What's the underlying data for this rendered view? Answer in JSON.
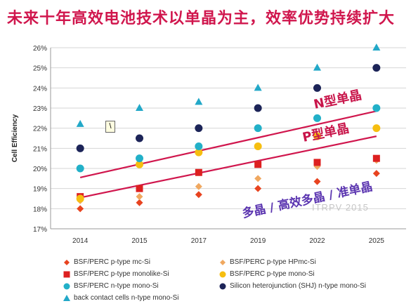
{
  "title": "未来十年高效电池技术以单晶为主，效率优势持续扩大",
  "cursor_glyph": "\\",
  "chart_data": {
    "type": "scatter",
    "xlabel": "",
    "ylabel": "Cell Efficiency",
    "categories": [
      "2014",
      "2015",
      "2017",
      "2019",
      "2022",
      "2025"
    ],
    "ylim": [
      17,
      26
    ],
    "yticks": [
      "17%",
      "18%",
      "19%",
      "20%",
      "21%",
      "22%",
      "23%",
      "24%",
      "25%",
      "26%"
    ],
    "grid": true,
    "legend_position": "bottom",
    "series": [
      {
        "name": "BSF/PERC p-type mc-Si",
        "marker": "diamond",
        "color": "#e8431f",
        "values": [
          18.0,
          18.3,
          18.7,
          19.0,
          19.35,
          19.75
        ]
      },
      {
        "name": "BSF/PERC p-type HPmc-Si",
        "marker": "diamond",
        "color": "#f0a860",
        "values": [
          18.4,
          18.6,
          19.1,
          19.5,
          20.1,
          20.4
        ]
      },
      {
        "name": "BSF/PERC p-type monolike-Si",
        "marker": "square",
        "color": "#dd2020",
        "values": [
          18.6,
          19.0,
          19.8,
          20.2,
          20.3,
          20.5
        ]
      },
      {
        "name": "BSF/PERC p-type mono-Si",
        "marker": "circle",
        "color": "#f6be10",
        "values": [
          18.5,
          20.2,
          20.8,
          21.1,
          21.6,
          22.0
        ]
      },
      {
        "name": "BSF/PERC n-type mono-Si",
        "marker": "circle",
        "color": "#22b0c8",
        "values": [
          20.0,
          20.5,
          21.1,
          22.0,
          22.5,
          23.0
        ]
      },
      {
        "name": "Silicon heterojunction (SHJ) n-type mono-Si",
        "marker": "circle",
        "color": "#1c2458",
        "values": [
          21.0,
          21.5,
          22.0,
          23.0,
          24.0,
          25.0
        ]
      },
      {
        "name": "back contact cells n-type mono-Si",
        "marker": "triangle",
        "color": "#22a8c8",
        "values": [
          22.2,
          23.0,
          23.3,
          24.0,
          25.0,
          26.0
        ]
      }
    ],
    "annotations": [
      {
        "text": "N型单晶"
      },
      {
        "text": "P型单晶"
      },
      {
        "text": "多晶 / 高效多晶 / 准单晶"
      },
      {
        "text": "ITRPV 2015"
      }
    ],
    "trend_lines": [
      {
        "from": [
          2014,
          19.55
        ],
        "to": [
          2025,
          22.85
        ]
      },
      {
        "from": [
          2014,
          18.55
        ],
        "to": [
          2025,
          21.6
        ]
      }
    ]
  }
}
